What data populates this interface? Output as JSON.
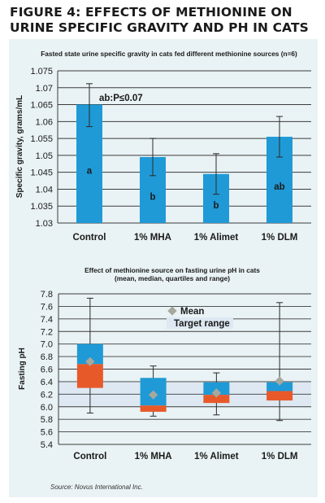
{
  "figure_title": "FIGURE 4: EFFECTS OF METHIONINE ON URINE SPECIFIC GRAVITY AND PH IN CATS",
  "source": "Source: Novus International Inc.",
  "colors": {
    "bar": "#1f9ad6",
    "panel": "#e9f2f4",
    "box_upper": "#1f9ad6",
    "box_lower": "#e8592a",
    "mean_marker": "#a7a89d",
    "target_band": "#dde8f2"
  },
  "chart_data": [
    {
      "type": "bar",
      "title": "Fasted state urine specific gravity in cats fed different methionine sources (n=6)",
      "xlabel": "",
      "ylabel": "Specific gravity, grams/mL",
      "ylim": [
        1.03,
        1.075
      ],
      "yticks": [
        "1.075",
        "1.07",
        "1.065",
        "1.06",
        "1.055",
        "1.05",
        "1.045",
        "1.04",
        "1.035",
        "1.03"
      ],
      "categories": [
        "Control",
        "1% MHA",
        "1% Alimet",
        "1% DLM"
      ],
      "values": [
        1.065,
        1.0495,
        1.0445,
        1.0555
      ],
      "error_low": [
        1.0585,
        1.044,
        1.0385,
        1.0495
      ],
      "error_high": [
        1.0712,
        1.055,
        1.0505,
        1.0615
      ],
      "letters": [
        "a",
        "b",
        "b",
        "ab"
      ],
      "annotation": "ab:P≤0.07",
      "grid": true
    },
    {
      "type": "box",
      "title": "Effect of methionine source on fasting urine pH in cats",
      "subtitle": "(mean, median, quartiles and range)",
      "xlabel": "",
      "ylabel": "Fasting pH",
      "ylim": [
        5.4,
        7.8
      ],
      "yticks": [
        "7.8",
        "7.6",
        "7.4",
        "7.2",
        "7.0",
        "6.8",
        "6.6",
        "6.4",
        "6.2",
        "6.0",
        "5.8",
        "5.6",
        "5.4"
      ],
      "categories": [
        "Control",
        "1% MHA",
        "1% Alimet",
        "1% DLM"
      ],
      "min": [
        5.9,
        5.85,
        5.87,
        5.78
      ],
      "q1": [
        6.3,
        5.92,
        6.06,
        6.1
      ],
      "median": [
        6.68,
        6.02,
        6.19,
        6.25
      ],
      "q3": [
        7.0,
        6.46,
        6.39,
        6.39
      ],
      "max": [
        7.73,
        6.65,
        6.54,
        7.66
      ],
      "mean": [
        6.72,
        6.19,
        6.22,
        6.41
      ],
      "target_range": [
        6.0,
        6.4
      ],
      "legend": {
        "mean": "Mean",
        "target": "Target range"
      },
      "grid": true
    }
  ]
}
